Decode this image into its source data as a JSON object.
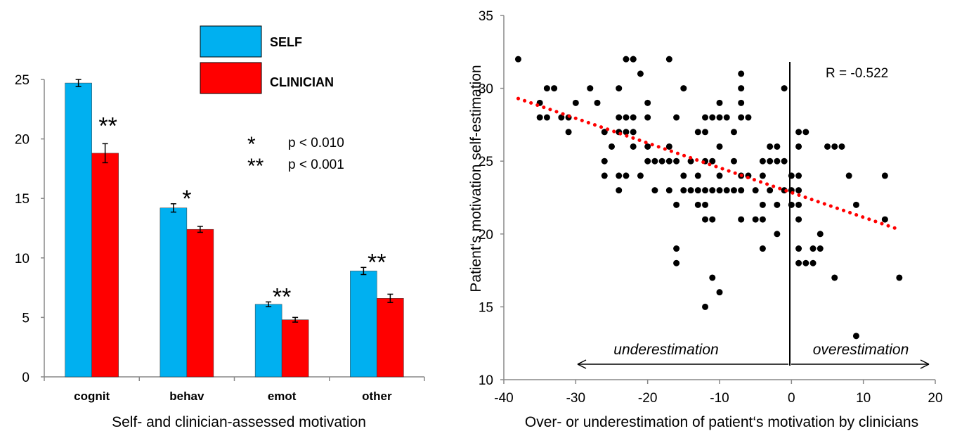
{
  "chart_data": [
    {
      "type": "bar",
      "xlabel": "Self- and clinician-assessed motivation",
      "ylabel": "",
      "ylim": [
        0,
        25
      ],
      "yticks": [
        "0",
        "5",
        "10",
        "15",
        "20",
        "25"
      ],
      "categories": [
        "cognit",
        "behav",
        "emot",
        "other"
      ],
      "series": [
        {
          "name": "SELF",
          "color": "#00b0f0",
          "values": [
            24.7,
            14.2,
            6.1,
            8.9
          ],
          "errors": [
            0.3,
            0.35,
            0.2,
            0.3
          ]
        },
        {
          "name": "CLINICIAN",
          "color": "#ff0000",
          "values": [
            18.8,
            12.4,
            4.8,
            6.6
          ],
          "errors": [
            0.8,
            0.25,
            0.2,
            0.35
          ]
        }
      ],
      "legend_position": "top-center",
      "significance_marks": [
        "**",
        "*",
        "**",
        "**"
      ],
      "significance_legend": [
        {
          "symbol": "*",
          "text": "p < 0.010"
        },
        {
          "symbol": "**",
          "text": "p < 0.001"
        }
      ]
    },
    {
      "type": "scatter",
      "xlabel": "Over- or underestimation of patient‘s motivation by clinicians",
      "ylabel": "Patient‘s motivation self-estimation",
      "xlim": [
        -40,
        20
      ],
      "ylim": [
        10,
        35
      ],
      "xticks": [
        "-40",
        "-30",
        "-20",
        "-10",
        "0",
        "10",
        "20"
      ],
      "yticks": [
        "10",
        "15",
        "20",
        "25",
        "30",
        "35"
      ],
      "annotation": "R = -0.522",
      "arrow_labels": {
        "left": "underestimation",
        "right": "overestimation"
      },
      "trendline": {
        "color": "#ff0000",
        "style": "dotted",
        "x": [
          -38,
          15
        ],
        "y": [
          29.3,
          20.3
        ]
      },
      "points": [
        [
          -38,
          32
        ],
        [
          -35,
          29
        ],
        [
          -35,
          28
        ],
        [
          -34,
          28
        ],
        [
          -34,
          30
        ],
        [
          -33,
          30
        ],
        [
          -32,
          28
        ],
        [
          -31,
          27
        ],
        [
          -31,
          28
        ],
        [
          -30,
          29
        ],
        [
          -28,
          30
        ],
        [
          -27,
          29
        ],
        [
          -26,
          27
        ],
        [
          -26,
          25
        ],
        [
          -26,
          24
        ],
        [
          -25,
          26
        ],
        [
          -24,
          30
        ],
        [
          -24,
          28
        ],
        [
          -24,
          27
        ],
        [
          -24,
          24
        ],
        [
          -24,
          23
        ],
        [
          -23,
          32
        ],
        [
          -23,
          28
        ],
        [
          -23,
          27
        ],
        [
          -23,
          24
        ],
        [
          -22,
          32
        ],
        [
          -22,
          28
        ],
        [
          -22,
          27
        ],
        [
          -22,
          26
        ],
        [
          -22,
          32
        ],
        [
          -21,
          31
        ],
        [
          -21,
          24
        ],
        [
          -20,
          29
        ],
        [
          -20,
          28
        ],
        [
          -20,
          26
        ],
        [
          -20,
          25
        ],
        [
          -19,
          23
        ],
        [
          -19,
          25
        ],
        [
          -18,
          25
        ],
        [
          -17,
          25
        ],
        [
          -17,
          32
        ],
        [
          -17,
          26
        ],
        [
          -17,
          23
        ],
        [
          -16,
          28
        ],
        [
          -16,
          25
        ],
        [
          -16,
          22
        ],
        [
          -16,
          19
        ],
        [
          -16,
          18
        ],
        [
          -15,
          30
        ],
        [
          -15,
          23
        ],
        [
          -15,
          24
        ],
        [
          -14,
          25
        ],
        [
          -14,
          23
        ],
        [
          -13,
          27
        ],
        [
          -13,
          24
        ],
        [
          -13,
          23
        ],
        [
          -13,
          22
        ],
        [
          -12,
          28
        ],
        [
          -12,
          27
        ],
        [
          -12,
          25
        ],
        [
          -12,
          23
        ],
        [
          -12,
          22
        ],
        [
          -12,
          21
        ],
        [
          -12,
          15
        ],
        [
          -11,
          28
        ],
        [
          -11,
          25
        ],
        [
          -11,
          23
        ],
        [
          -11,
          21
        ],
        [
          -11,
          17
        ],
        [
          -10,
          29
        ],
        [
          -10,
          28
        ],
        [
          -10,
          24
        ],
        [
          -10,
          23
        ],
        [
          -10,
          26
        ],
        [
          -10,
          16
        ],
        [
          -9,
          28
        ],
        [
          -9,
          23
        ],
        [
          -8,
          27
        ],
        [
          -8,
          25
        ],
        [
          -8,
          23
        ],
        [
          -7,
          31
        ],
        [
          -7,
          30
        ],
        [
          -7,
          29
        ],
        [
          -7,
          28
        ],
        [
          -7,
          24
        ],
        [
          -7,
          23
        ],
        [
          -7,
          21
        ],
        [
          -6,
          28
        ],
        [
          -6,
          24
        ],
        [
          -5,
          23
        ],
        [
          -5,
          21
        ],
        [
          -4,
          25
        ],
        [
          -4,
          24
        ],
        [
          -4,
          22
        ],
        [
          -4,
          21
        ],
        [
          -4,
          19
        ],
        [
          -3,
          26
        ],
        [
          -3,
          25
        ],
        [
          -3,
          23
        ],
        [
          -2,
          26
        ],
        [
          -2,
          25
        ],
        [
          -2,
          22
        ],
        [
          -2,
          20
        ],
        [
          -1,
          25
        ],
        [
          -1,
          30
        ],
        [
          -1,
          23
        ],
        [
          0,
          24
        ],
        [
          0,
          23
        ],
        [
          0,
          22
        ],
        [
          1,
          27
        ],
        [
          1,
          26
        ],
        [
          1,
          24
        ],
        [
          1,
          23
        ],
        [
          1,
          22
        ],
        [
          1,
          21
        ],
        [
          1,
          19
        ],
        [
          1,
          18
        ],
        [
          2,
          27
        ],
        [
          2,
          18
        ],
        [
          3,
          19
        ],
        [
          3,
          18
        ],
        [
          4,
          20
        ],
        [
          4,
          19
        ],
        [
          5,
          26
        ],
        [
          6,
          26
        ],
        [
          6,
          17
        ],
        [
          7,
          26
        ],
        [
          8,
          24
        ],
        [
          9,
          22
        ],
        [
          9,
          13
        ],
        [
          13,
          24
        ],
        [
          13,
          21
        ],
        [
          15,
          17
        ]
      ]
    }
  ]
}
